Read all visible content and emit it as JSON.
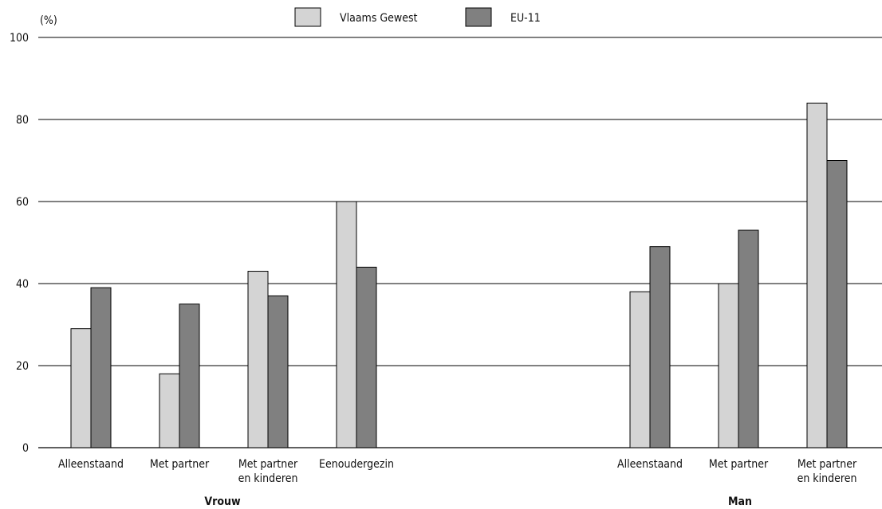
{
  "chart_data": {
    "type": "bar",
    "y_unit": "(%)",
    "ylim": [
      0,
      100
    ],
    "yticks": [
      0,
      20,
      40,
      60,
      80,
      100
    ],
    "grid": true,
    "legend_position": "top-center",
    "series": [
      {
        "name": "Vlaams Gewest",
        "color": "#d4d4d4"
      },
      {
        "name": "EU-11",
        "color": "#808080"
      }
    ],
    "groups": [
      {
        "label": "Vrouw",
        "categories": [
          {
            "label": [
              "Alleenstaand"
            ],
            "values": [
              29,
              39
            ]
          },
          {
            "label": [
              "Met partner"
            ],
            "values": [
              18,
              35
            ]
          },
          {
            "label": [
              "Met partner",
              "en kinderen"
            ],
            "values": [
              43,
              37
            ]
          },
          {
            "label": [
              "Eenoudergezin"
            ],
            "values": [
              60,
              44
            ]
          }
        ]
      },
      {
        "label": "Man",
        "categories": [
          {
            "label": [
              "Alleenstaand"
            ],
            "values": [
              38,
              49
            ]
          },
          {
            "label": [
              "Met partner"
            ],
            "values": [
              40,
              53
            ]
          },
          {
            "label": [
              "Met partner",
              "en kinderen"
            ],
            "values": [
              84,
              70
            ]
          }
        ]
      }
    ]
  }
}
